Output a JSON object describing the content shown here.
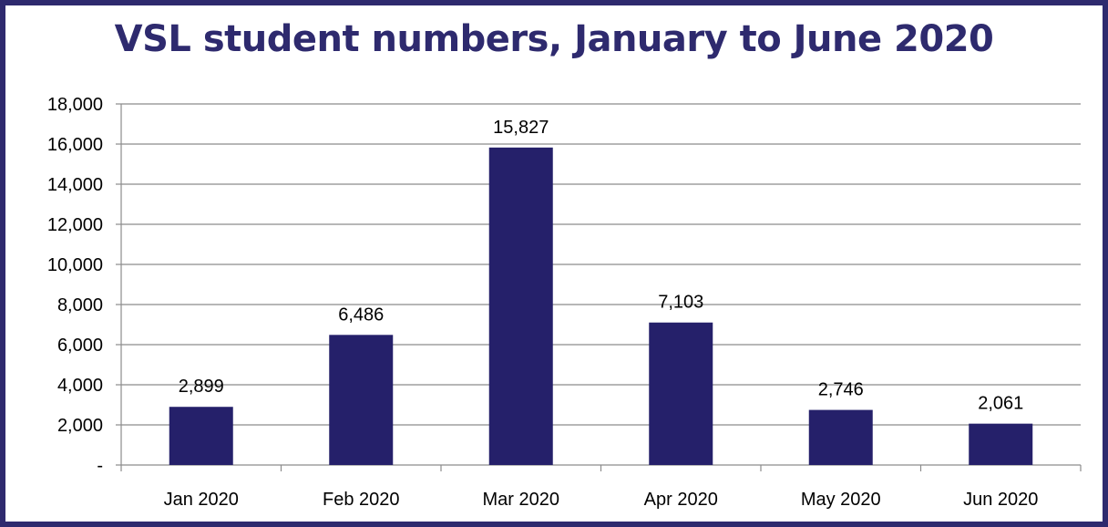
{
  "chart_data": {
    "type": "bar",
    "title": "VSL student numbers, January to June 2020",
    "categories": [
      "Jan 2020",
      "Feb 2020",
      "Mar 2020",
      "Apr 2020",
      "May 2020",
      "Jun 2020"
    ],
    "values": [
      2899,
      6486,
      15827,
      7103,
      2746,
      2061
    ],
    "data_labels": [
      "2,899",
      "6,486",
      "15,827",
      "7,103",
      "2,746",
      "2,061"
    ],
    "xlabel": "",
    "ylabel": "",
    "ylim": [
      0,
      18000
    ],
    "y_ticks": [
      0,
      2000,
      4000,
      6000,
      8000,
      10000,
      12000,
      14000,
      16000,
      18000
    ],
    "y_tick_labels": [
      "-",
      "2,000",
      "4,000",
      "6,000",
      "8,000",
      "10,000",
      "12,000",
      "14,000",
      "16,000",
      "18,000"
    ],
    "grid": true,
    "legend": "none",
    "colors": {
      "bar": "#25206a",
      "title": "#2e2a6e",
      "frame": "#2e2a6e",
      "grid": "#8c8c8c",
      "axis": "#8c8c8c"
    }
  }
}
